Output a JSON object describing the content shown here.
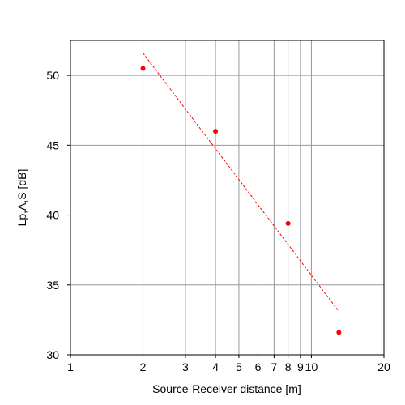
{
  "chart_data": {
    "type": "scatter",
    "xlabel": "Source-Receiver distance [m]",
    "ylabel": "Lp,A,S [dB]",
    "xscale": "log",
    "xlim": [
      1,
      20
    ],
    "ylim": [
      30,
      52.5
    ],
    "xticks": [
      1,
      2,
      3,
      4,
      5,
      6,
      7,
      8,
      9,
      10,
      20
    ],
    "yticks": [
      30,
      35,
      40,
      45,
      50
    ],
    "grid": true,
    "series": [
      {
        "type": "scatter",
        "color": "#ff0000",
        "x": [
          2,
          4,
          8,
          13
        ],
        "values": [
          50.5,
          46.0,
          39.4,
          31.6
        ]
      },
      {
        "type": "line",
        "dashed": true,
        "color": "#ff0000",
        "x": [
          2,
          13
        ],
        "values": [
          51.6,
          33.1
        ]
      }
    ]
  }
}
